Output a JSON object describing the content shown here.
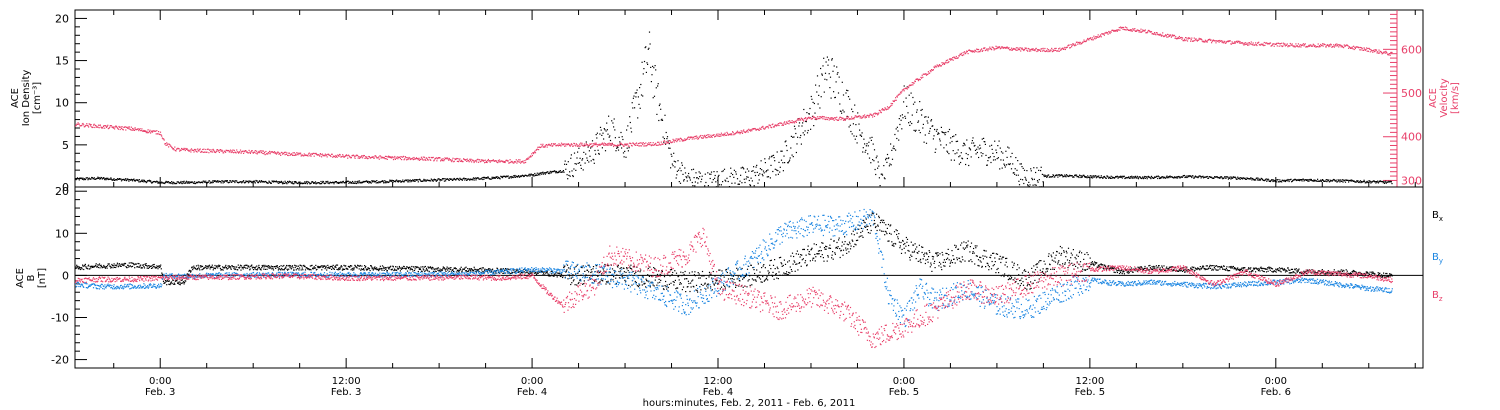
{
  "chart_data": [
    {
      "type": "scatter",
      "panel": "top",
      "title": "",
      "ylabel_left": [
        "ACE",
        "Ion Density",
        "[cm⁻³]"
      ],
      "ylabel_right": [
        "ACE",
        "Velocity",
        "[km/s]"
      ],
      "xlim_hours": [
        -5.5,
        81.5
      ],
      "ylim_left": [
        0,
        21
      ],
      "ylim_right": [
        285,
        690
      ],
      "left_ticks": [
        0,
        5,
        10,
        15,
        20
      ],
      "left_tick_labels": [
        "0",
        "5",
        "10",
        "15",
        "20"
      ],
      "right_ticks": [
        300,
        400,
        500,
        600
      ],
      "right_tick_labels": [
        "300",
        "400",
        "500",
        "600"
      ],
      "grid": false,
      "series": [
        {
          "key": "density",
          "color": "#000000",
          "axis": "left",
          "x_hours": [
            -5.5,
            -4,
            -2,
            0,
            2,
            4,
            6,
            8,
            10,
            12,
            14,
            16,
            18,
            20,
            22,
            24,
            24.6,
            26,
            28,
            29,
            30,
            31,
            31.5,
            32,
            33,
            34,
            34.8,
            35,
            36,
            38,
            40,
            42,
            43,
            44,
            45,
            46,
            46.5,
            47,
            48,
            49,
            50,
            51,
            52,
            53,
            54,
            55,
            55.5,
            56,
            58,
            60,
            62,
            64,
            66,
            68,
            70,
            72,
            74,
            76,
            78,
            79.5
          ],
          "values": [
            1.0,
            1.1,
            0.9,
            0.6,
            0.6,
            0.7,
            0.7,
            0.6,
            0.6,
            0.6,
            0.7,
            0.8,
            0.9,
            1.0,
            1.2,
            1.5,
            1.7,
            2.0,
            4.5,
            7.0,
            5.0,
            12.0,
            16.0,
            11.0,
            3.0,
            1.0,
            1.0,
            0.5,
            1.0,
            1.2,
            3.0,
            9.0,
            14.0,
            11.0,
            7.0,
            4.0,
            0.5,
            3.0,
            10.0,
            8.0,
            6.0,
            5.0,
            4.0,
            4.5,
            4.0,
            3.0,
            1.5,
            1.3,
            1.4,
            1.3,
            1.2,
            1.2,
            1.3,
            1.2,
            1.1,
            0.8,
            0.9,
            0.8,
            0.7,
            0.6
          ]
        },
        {
          "key": "velocity",
          "color": "#e8406a",
          "axis": "right",
          "x_hours": [
            -5.5,
            -4,
            -2,
            0,
            0.3,
            1,
            2,
            4,
            6,
            8,
            10,
            12,
            14,
            16,
            18,
            20,
            22,
            23.5,
            24.5,
            26,
            28,
            30,
            32,
            34,
            36,
            38,
            40,
            42,
            44,
            46,
            47,
            48,
            50,
            52,
            54,
            56,
            58,
            60,
            62,
            64,
            66,
            68,
            70,
            72,
            74,
            76,
            78,
            79.5
          ],
          "values": [
            430,
            425,
            420,
            410,
            385,
            372,
            370,
            368,
            366,
            362,
            360,
            356,
            354,
            352,
            350,
            346,
            345,
            345,
            380,
            383,
            383,
            383,
            385,
            397,
            405,
            415,
            430,
            445,
            442,
            450,
            470,
            510,
            560,
            595,
            605,
            600,
            600,
            625,
            650,
            640,
            625,
            620,
            615,
            612,
            610,
            610,
            600,
            590
          ]
        }
      ]
    },
    {
      "type": "scatter",
      "panel": "bottom",
      "title": "",
      "ylabel_left": [
        "ACE",
        "B",
        "[nT]"
      ],
      "xlabel": "hours:minutes, Feb.  2, 2011 - Feb.  6, 2011",
      "xlim_hours": [
        -5.5,
        81.5
      ],
      "ylim": [
        -22,
        21
      ],
      "left_ticks": [
        -20,
        -10,
        0,
        10,
        20
      ],
      "left_tick_labels": [
        "-20",
        "-10",
        "0",
        "10",
        "20"
      ],
      "zero_line": true,
      "grid": false,
      "x_ticks_hours": [
        0,
        12,
        24,
        36,
        48,
        60,
        72
      ],
      "x_tick_labels": [
        [
          "0:00",
          "Feb. 3"
        ],
        [
          "12:00",
          "Feb. 3"
        ],
        [
          "0:00",
          "Feb. 4"
        ],
        [
          "12:00",
          "Feb. 4"
        ],
        [
          "0:00",
          "Feb. 5"
        ],
        [
          "12:00",
          "Feb. 5"
        ],
        [
          "0:00",
          "Feb. 6"
        ]
      ],
      "legend_placement": "right",
      "series": [
        {
          "name": "Bx",
          "legend_main": "B",
          "legend_sub": "x",
          "color": "#000000",
          "x_hours": [
            -5.5,
            -4,
            -2,
            0,
            0.2,
            1.5,
            2,
            4,
            8,
            12,
            16,
            20,
            22,
            24,
            26,
            28,
            30,
            32,
            34,
            36,
            38,
            40,
            42,
            44,
            45,
            46,
            48,
            50,
            52,
            54,
            56,
            58,
            60,
            62,
            64,
            66,
            68,
            70,
            72,
            74,
            76,
            78,
            79.5
          ],
          "values": [
            2.0,
            2.4,
            2.6,
            2.2,
            -1.5,
            -1.5,
            2.0,
            2.0,
            2.0,
            2.0,
            1.7,
            1.5,
            1.2,
            1.0,
            0.2,
            0.5,
            0.3,
            -0.5,
            -1.5,
            -1.0,
            0.0,
            2.0,
            5.0,
            7.0,
            10.0,
            13.0,
            7.0,
            3.0,
            6.0,
            3.0,
            -1.0,
            5.0,
            3.0,
            1.0,
            2.0,
            1.5,
            2.0,
            1.5,
            1.5,
            1.0,
            1.0,
            0.5,
            0.0
          ]
        },
        {
          "name": "By",
          "legend_main": "B",
          "legend_sub": "y",
          "color": "#1c86e2",
          "x_hours": [
            -5.5,
            -4,
            -2,
            0,
            0.2,
            2,
            4,
            8,
            12,
            16,
            20,
            22,
            24,
            26,
            28,
            30,
            32,
            34,
            36,
            38,
            40,
            42,
            44,
            46,
            47,
            48,
            49,
            50,
            52,
            54,
            56,
            58,
            60,
            62,
            64,
            66,
            68,
            70,
            72,
            74,
            76,
            78,
            79.5
          ],
          "values": [
            -2.0,
            -2.5,
            -2.5,
            -2.3,
            0.0,
            0.0,
            0.2,
            0.3,
            0.3,
            0.3,
            0.5,
            1.0,
            1.5,
            1.2,
            0.5,
            -1.0,
            -4.0,
            -7.0,
            -2.0,
            3.0,
            10.0,
            12.0,
            12.0,
            14.0,
            -5.0,
            -10.0,
            -3.0,
            -6.0,
            -3.0,
            -7.0,
            -8.0,
            -4.0,
            -1.0,
            -2.0,
            -1.5,
            -2.0,
            -2.5,
            -2.0,
            -1.5,
            -1.0,
            -2.0,
            -3.0,
            -3.5
          ]
        },
        {
          "name": "Bz",
          "legend_main": "B",
          "legend_sub": "z",
          "color": "#e8406a",
          "x_hours": [
            -5.5,
            -4,
            -2,
            0,
            2,
            4,
            8,
            12,
            16,
            20,
            22,
            24,
            25,
            26,
            27,
            28,
            29,
            30,
            32,
            34,
            35,
            36,
            38,
            40,
            42,
            44,
            46,
            48,
            50,
            52,
            54,
            56,
            58,
            60,
            62,
            64,
            66,
            68,
            70,
            72,
            74,
            76,
            78,
            79.5
          ],
          "values": [
            -1.0,
            -0.8,
            -0.8,
            -0.5,
            -0.3,
            -0.3,
            0.0,
            -0.5,
            -0.5,
            -0.3,
            -0.5,
            0.0,
            -4.0,
            -7.0,
            -4.0,
            -2.0,
            5.0,
            4.0,
            2.0,
            5.0,
            10.0,
            -3.0,
            -5.0,
            -8.0,
            -5.0,
            -8.0,
            -15.0,
            -12.0,
            -8.0,
            -3.0,
            -5.0,
            -2.0,
            0.0,
            1.5,
            2.0,
            1.0,
            2.0,
            -2.0,
            1.0,
            -2.0,
            1.0,
            0.5,
            0.0,
            -1.0
          ]
        }
      ]
    }
  ]
}
